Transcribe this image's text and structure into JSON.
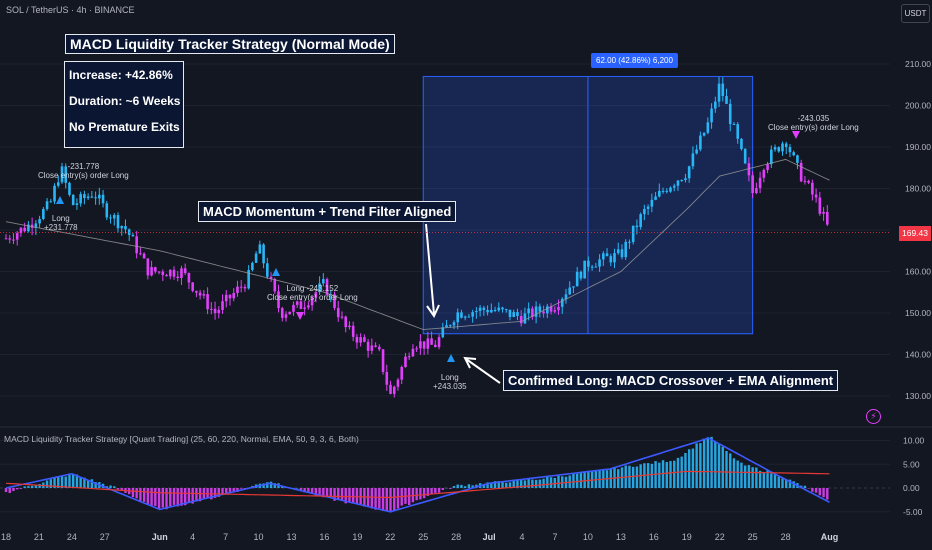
{
  "header": {
    "symbol_line": "SOL / TetherUS · 4h · BINANCE",
    "currency_button": "USDT"
  },
  "overlay": {
    "title": "MACD Liquidity Tracker Strategy (Normal Mode)",
    "stats": [
      "Increase: +42.86%",
      "Duration: ~6 Weeks",
      "No Premature Exits"
    ],
    "annotation_momentum": "MACD Momentum + Trend Filter Aligned",
    "annotation_confirm": "Confirmed Long: MACD Crossover + EMA Alignment",
    "range_measure": "62.00 (42.86%) 6,200",
    "current_price_tag": "169.43",
    "indicator_label": "MACD Liquidity Tracker Strategy [Quant Trading] (25, 60, 220, Normal, EMA, 50, 9, 3, 6, Both)"
  },
  "signals": [
    {
      "id": "sig1_close",
      "lines": [
        "-231.778",
        "Close entry(s) order Long"
      ]
    },
    {
      "id": "sig1_long",
      "lines": [
        "Long",
        "+231.778"
      ]
    },
    {
      "id": "sig2",
      "lines": [
        "Long  -243.152",
        "Close entry(s) order Long"
      ]
    },
    {
      "id": "sig3",
      "lines": [
        "Long",
        "+243.035"
      ]
    },
    {
      "id": "sig4",
      "lines": [
        "-243.035",
        "Close entry(s) order Long"
      ]
    }
  ],
  "colors": {
    "background": "#131722",
    "bull": "#29b6f6",
    "bear": "#e040fb",
    "macd_line": "#3d5afe",
    "signal_line": "#e53935",
    "ema_line": "#9e9e9e",
    "box_bg": "#0b1633",
    "measure": "#2962ff",
    "price_tag": "#f23645"
  },
  "chart_data": [
    {
      "type": "candlestick",
      "title": "SOL / TetherUS · 4h · BINANCE",
      "y_ticks": [
        130,
        140,
        150,
        160,
        170,
        180,
        190,
        200,
        210
      ],
      "ylim": [
        125,
        215
      ],
      "x_ticks": [
        "18",
        "21",
        "24",
        "27",
        "Jun",
        "4",
        "7",
        "10",
        "13",
        "16",
        "19",
        "22",
        "25",
        "28",
        "Jul",
        "4",
        "7",
        "10",
        "13",
        "16",
        "19",
        "22",
        "25",
        "28",
        "Aug"
      ],
      "series_close_approx": [
        {
          "x": "May 18",
          "y": 168
        },
        {
          "x": "May 20",
          "y": 171
        },
        {
          "x": "May 22",
          "y": 176
        },
        {
          "x": "May 23",
          "y": 185
        },
        {
          "x": "May 24",
          "y": 176
        },
        {
          "x": "May 26",
          "y": 179
        },
        {
          "x": "May 27",
          "y": 175
        },
        {
          "x": "May 29",
          "y": 170
        },
        {
          "x": "May 31",
          "y": 160
        },
        {
          "x": "Jun 3",
          "y": 160
        },
        {
          "x": "Jun 6",
          "y": 150
        },
        {
          "x": "Jun 9",
          "y": 158
        },
        {
          "x": "Jun 10",
          "y": 166
        },
        {
          "x": "Jun 11",
          "y": 158
        },
        {
          "x": "Jun 12",
          "y": 150
        },
        {
          "x": "Jun 14",
          "y": 152
        },
        {
          "x": "Jun 16",
          "y": 157
        },
        {
          "x": "Jun 18",
          "y": 146
        },
        {
          "x": "Jun 21",
          "y": 140
        },
        {
          "x": "Jun 22",
          "y": 130
        },
        {
          "x": "Jun 24",
          "y": 143
        },
        {
          "x": "Jun 26",
          "y": 142
        },
        {
          "x": "Jun 28",
          "y": 150
        },
        {
          "x": "Jul 1",
          "y": 151
        },
        {
          "x": "Jul 4",
          "y": 149
        },
        {
          "x": "Jul 7",
          "y": 152
        },
        {
          "x": "Jul 10",
          "y": 162
        },
        {
          "x": "Jul 13",
          "y": 164
        },
        {
          "x": "Jul 15",
          "y": 174
        },
        {
          "x": "Jul 17",
          "y": 180
        },
        {
          "x": "Jul 19",
          "y": 184
        },
        {
          "x": "Jul 21",
          "y": 196
        },
        {
          "x": "Jul 22",
          "y": 205
        },
        {
          "x": "Jul 24",
          "y": 188
        },
        {
          "x": "Jul 25",
          "y": 179
        },
        {
          "x": "Jul 26",
          "y": 186
        },
        {
          "x": "Jul 28",
          "y": 192
        },
        {
          "x": "Jul 29",
          "y": 185
        },
        {
          "x": "Jul 31",
          "y": 176
        },
        {
          "x": "Aug 1",
          "y": 169.43
        }
      ],
      "ema_approx": [
        {
          "x": "May 18",
          "y": 172
        },
        {
          "x": "Jun 1",
          "y": 165
        },
        {
          "x": "Jun 16",
          "y": 155
        },
        {
          "x": "Jun 25",
          "y": 146
        },
        {
          "x": "Jul 4",
          "y": 148
        },
        {
          "x": "Jul 13",
          "y": 160
        },
        {
          "x": "Jul 19",
          "y": 175
        },
        {
          "x": "Jul 22",
          "y": 183
        },
        {
          "x": "Jul 28",
          "y": 187
        },
        {
          "x": "Aug 1",
          "y": 182
        }
      ],
      "measure_box": {
        "x_range": [
          "Jun 25",
          "Jul 25"
        ],
        "y_range": [
          145,
          207
        ],
        "label": "62.00 (42.86%) 6,200"
      }
    },
    {
      "type": "bar",
      "title": "MACD Liquidity Tracker Strategy [Quant Trading] (25, 60, 220, Normal, EMA, 50, 9, 3, 6, Both)",
      "y_ticks": [
        "10.00",
        "5.00",
        "0.00",
        "-5.00"
      ],
      "ylim": [
        -7.5,
        12
      ],
      "series": [
        {
          "name": "",
          "type": "histogram",
          "values_approx": [
            {
              "x": "May 18",
              "y": -1
            },
            {
              "x": "May 24",
              "y": 3
            },
            {
              "x": "May 28",
              "y": 0
            },
            {
              "x": "Jun 1",
              "y": -4.5
            },
            {
              "x": "Jun 6",
              "y": -2
            },
            {
              "x": "Jun 11",
              "y": 1.5
            },
            {
              "x": "Jun 16",
              "y": -2
            },
            {
              "x": "Jun 22",
              "y": -5
            },
            {
              "x": "Jun 25",
              "y": -2
            },
            {
              "x": "Jun 28",
              "y": 0.5
            },
            {
              "x": "Jul 6",
              "y": 2
            },
            {
              "x": "Jul 12",
              "y": 4
            },
            {
              "x": "Jul 18",
              "y": 6
            },
            {
              "x": "Jul 21",
              "y": 11
            },
            {
              "x": "Jul 24",
              "y": 5
            },
            {
              "x": "Jul 27",
              "y": 3
            },
            {
              "x": "Jul 30",
              "y": 0
            },
            {
              "x": "Aug 1",
              "y": -3
            }
          ]
        },
        {
          "name": "",
          "type": "line",
          "values_approx": [
            {
              "x": "May 18",
              "y": 0
            },
            {
              "x": "May 24",
              "y": 3
            },
            {
              "x": "Jun 1",
              "y": -4.5
            },
            {
              "x": "Jun 11",
              "y": 1
            },
            {
              "x": "Jun 22",
              "y": -5
            },
            {
              "x": "Jul 1",
              "y": 1
            },
            {
              "x": "Jul 12",
              "y": 4
            },
            {
              "x": "Jul 21",
              "y": 10.5
            },
            {
              "x": "Jul 27",
              "y": 3
            },
            {
              "x": "Aug 1",
              "y": -3
            }
          ]
        },
        {
          "name": "",
          "type": "line",
          "values_approx": [
            {
              "x": "May 18",
              "y": 1
            },
            {
              "x": "Jun 1",
              "y": -1
            },
            {
              "x": "Jun 22",
              "y": -2
            },
            {
              "x": "Jul 5",
              "y": 0.5
            },
            {
              "x": "Jul 19",
              "y": 3.5
            },
            {
              "x": "Aug 1",
              "y": 3
            }
          ]
        }
      ]
    }
  ]
}
